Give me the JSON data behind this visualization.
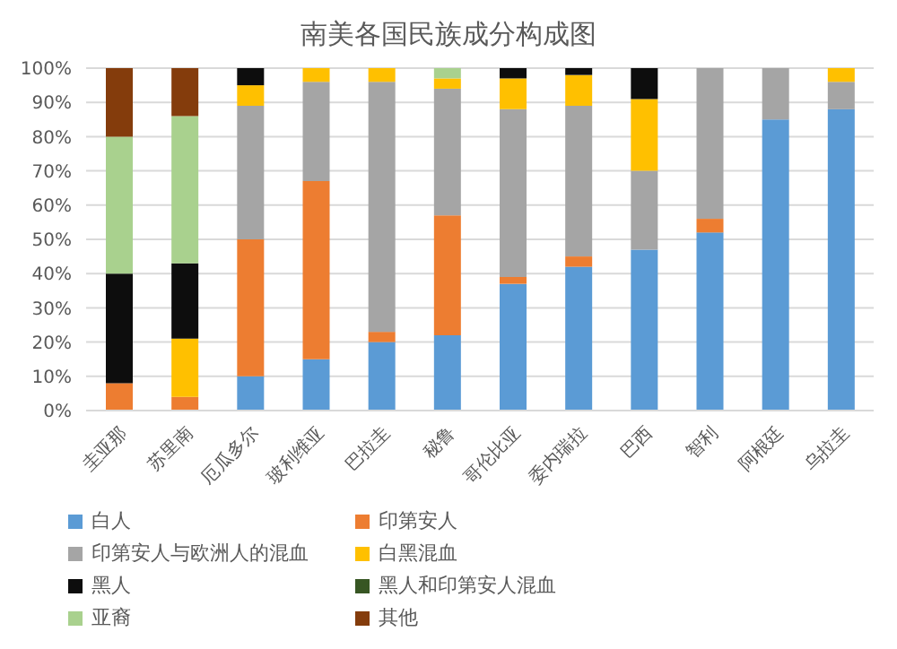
{
  "chart_data": {
    "type": "bar",
    "stacked": true,
    "title": "南美各国民族成分构成图",
    "categories": [
      "圭亚那",
      "苏里南",
      "厄瓜多尔",
      "玻利维亚",
      "巴拉圭",
      "秘鲁",
      "哥伦比亚",
      "委内瑞拉",
      "巴西",
      "智利",
      "阿根廷",
      "乌拉圭"
    ],
    "series": [
      {
        "name": "白人",
        "color": "#5b9bd5",
        "values": [
          0,
          0,
          10,
          15,
          20,
          22,
          37,
          42,
          47,
          52,
          85,
          88
        ]
      },
      {
        "name": "印第安人",
        "color": "#ed7d31",
        "values": [
          8,
          4,
          40,
          52,
          3,
          35,
          2,
          3,
          0,
          4,
          0,
          0
        ]
      },
      {
        "name": "印第安人与欧洲人的混血",
        "color": "#a5a5a5",
        "values": [
          0,
          0,
          39,
          29,
          73,
          37,
          49,
          44,
          23,
          44,
          15,
          8
        ]
      },
      {
        "name": "白黑混血",
        "color": "#ffc000",
        "values": [
          0,
          17,
          6,
          4,
          4,
          3,
          9,
          9,
          21,
          0,
          0,
          4
        ]
      },
      {
        "name": "黑人",
        "color": "#0d0d0d",
        "values": [
          32,
          22,
          5,
          0,
          0,
          0,
          3,
          2,
          9,
          0,
          0,
          0
        ]
      },
      {
        "name": "黑人和印第安人混血",
        "color": "#375623",
        "values": [
          0,
          0,
          0,
          0,
          0,
          0,
          0,
          0,
          0,
          0,
          0,
          0
        ]
      },
      {
        "name": "亚裔",
        "color": "#a9d18e",
        "values": [
          40,
          43,
          0,
          0,
          0,
          3,
          0,
          0,
          0,
          0,
          0,
          0
        ]
      },
      {
        "name": "其他",
        "color": "#843c0c",
        "values": [
          20,
          14,
          0,
          0,
          0,
          0,
          0,
          0,
          0,
          0,
          0,
          0
        ]
      }
    ],
    "ylim": [
      0,
      100
    ],
    "yticks": [
      {
        "value": 0,
        "label": "0%"
      },
      {
        "value": 10,
        "label": "10%"
      },
      {
        "value": 20,
        "label": "20%"
      },
      {
        "value": 30,
        "label": "30%"
      },
      {
        "value": 40,
        "label": "40%"
      },
      {
        "value": 50,
        "label": "50%"
      },
      {
        "value": 60,
        "label": "60%"
      },
      {
        "value": 70,
        "label": "70%"
      },
      {
        "value": 80,
        "label": "80%"
      },
      {
        "value": 90,
        "label": "90%"
      },
      {
        "value": 100,
        "label": "100%"
      }
    ],
    "grid": "y",
    "legend": "bottom"
  }
}
